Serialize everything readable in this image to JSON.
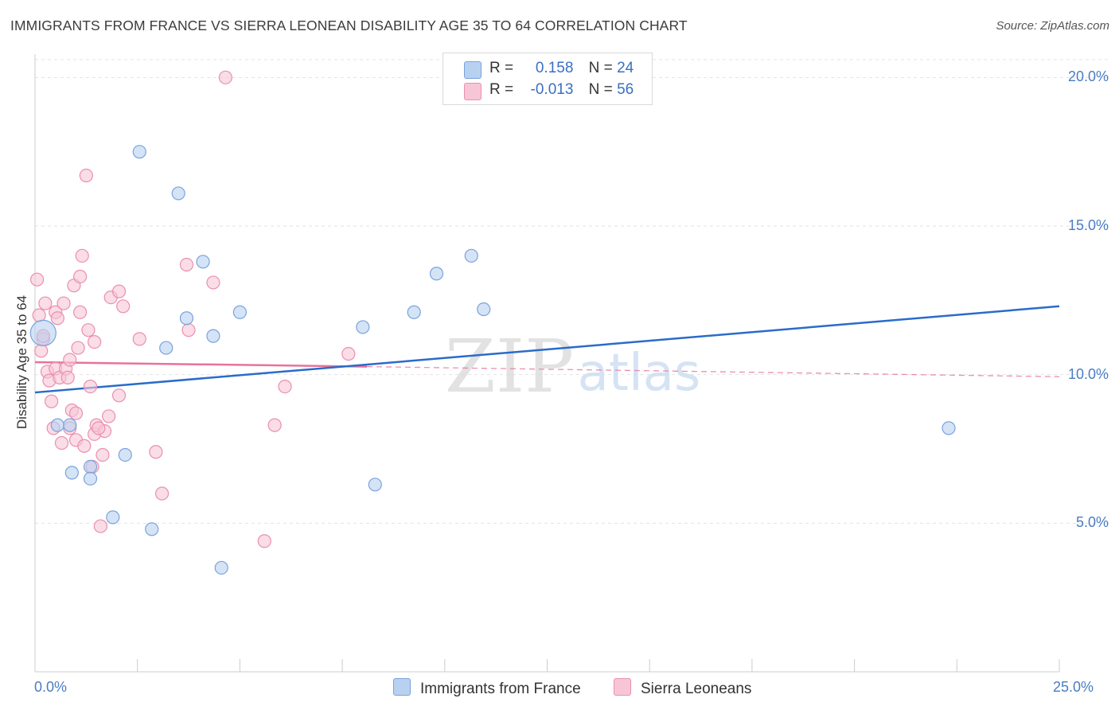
{
  "title": "IMMIGRANTS FROM FRANCE VS SIERRA LEONEAN DISABILITY AGE 35 TO 64 CORRELATION CHART",
  "source": "Source: ZipAtlas.com",
  "watermark": {
    "zip": "ZIP",
    "atlas": "atlas"
  },
  "colors": {
    "blue_fill": "#b8d1f0",
    "blue_stroke": "#7aa3dd",
    "blue_line": "#2a6cc9",
    "pink_fill": "#f7c6d6",
    "pink_stroke": "#eb8fae",
    "pink_line": "#e8739a",
    "axis_text": "#4a7cc4"
  },
  "legend": {
    "rows": [
      {
        "r_label": "R =",
        "r_value": "0.158",
        "n_label": "N =",
        "n_value": "24"
      },
      {
        "r_label": "R =",
        "r_value": "-0.013",
        "n_label": "N =",
        "n_value": "56"
      }
    ]
  },
  "bottom_legend": {
    "series1": "Immigrants from France",
    "series2": "Sierra Leoneans"
  },
  "chart_data": {
    "type": "scatter",
    "ylabel": "Disability Age 35 to 64",
    "xlim": [
      0,
      25
    ],
    "ylim": [
      0,
      21
    ],
    "x_tick_labels": {
      "min": "0.0%",
      "max": "25.0%"
    },
    "y_ticks": [
      {
        "value": 5,
        "label": "5.0%"
      },
      {
        "value": 10,
        "label": "10.0%"
      },
      {
        "value": 15,
        "label": "15.0%"
      },
      {
        "value": 20,
        "label": "20.0%"
      }
    ],
    "series": [
      {
        "name": "Immigrants from France",
        "R": 0.158,
        "N": 24,
        "points": [
          [
            0.2,
            11.4
          ],
          [
            2.55,
            17.5
          ],
          [
            3.5,
            16.1
          ],
          [
            4.1,
            13.8
          ],
          [
            3.7,
            11.9
          ],
          [
            3.2,
            10.9
          ],
          [
            4.35,
            11.3
          ],
          [
            5.0,
            12.1
          ],
          [
            0.55,
            8.3
          ],
          [
            0.85,
            8.3
          ],
          [
            0.9,
            6.7
          ],
          [
            1.35,
            6.9
          ],
          [
            1.35,
            6.5
          ],
          [
            2.2,
            7.3
          ],
          [
            1.9,
            5.2
          ],
          [
            2.85,
            4.8
          ],
          [
            4.55,
            3.5
          ],
          [
            8.0,
            11.6
          ],
          [
            9.25,
            12.1
          ],
          [
            9.8,
            13.4
          ],
          [
            10.65,
            14.0
          ],
          [
            10.95,
            12.2
          ],
          [
            8.3,
            6.3
          ],
          [
            22.3,
            8.2
          ]
        ],
        "trend": {
          "x": [
            0,
            25
          ],
          "y": [
            9.4,
            12.3
          ]
        }
      },
      {
        "name": "Sierra Leoneans",
        "R": -0.013,
        "N": 56,
        "points": [
          [
            0.05,
            13.2
          ],
          [
            0.1,
            12.0
          ],
          [
            0.15,
            10.8
          ],
          [
            0.2,
            11.2
          ],
          [
            0.25,
            12.4
          ],
          [
            0.3,
            10.1
          ],
          [
            0.35,
            9.8
          ],
          [
            0.4,
            9.1
          ],
          [
            0.45,
            8.2
          ],
          [
            0.5,
            12.1
          ],
          [
            0.5,
            10.2
          ],
          [
            0.55,
            11.9
          ],
          [
            0.6,
            9.9
          ],
          [
            0.65,
            7.7
          ],
          [
            0.7,
            12.4
          ],
          [
            0.75,
            10.2
          ],
          [
            0.8,
            9.9
          ],
          [
            0.85,
            8.2
          ],
          [
            0.85,
            10.5
          ],
          [
            0.9,
            8.8
          ],
          [
            0.95,
            13.0
          ],
          [
            1.0,
            8.7
          ],
          [
            1.0,
            7.8
          ],
          [
            1.05,
            10.9
          ],
          [
            1.1,
            13.3
          ],
          [
            1.1,
            12.1
          ],
          [
            1.15,
            14.0
          ],
          [
            1.2,
            7.6
          ],
          [
            1.25,
            16.7
          ],
          [
            1.3,
            11.5
          ],
          [
            1.35,
            9.6
          ],
          [
            1.4,
            6.9
          ],
          [
            1.45,
            8.0
          ],
          [
            1.45,
            11.1
          ],
          [
            1.5,
            8.3
          ],
          [
            1.6,
            4.9
          ],
          [
            1.65,
            7.3
          ],
          [
            1.7,
            8.1
          ],
          [
            1.8,
            8.6
          ],
          [
            1.85,
            12.6
          ],
          [
            2.05,
            12.8
          ],
          [
            2.05,
            9.3
          ],
          [
            2.15,
            12.3
          ],
          [
            2.55,
            11.2
          ],
          [
            2.95,
            7.4
          ],
          [
            3.1,
            6.0
          ],
          [
            3.7,
            13.7
          ],
          [
            3.75,
            11.5
          ],
          [
            4.35,
            13.1
          ],
          [
            4.65,
            20.0
          ],
          [
            5.6,
            4.4
          ],
          [
            5.85,
            8.3
          ],
          [
            6.1,
            9.6
          ],
          [
            7.65,
            10.7
          ],
          [
            0.2,
            11.3
          ],
          [
            1.55,
            8.2
          ]
        ],
        "trend": {
          "x": [
            0,
            8.1
          ],
          "y": [
            10.42,
            10.27
          ]
        },
        "trend_dashed": {
          "x": [
            8.1,
            25
          ],
          "y": [
            10.27,
            9.93
          ]
        }
      }
    ]
  }
}
